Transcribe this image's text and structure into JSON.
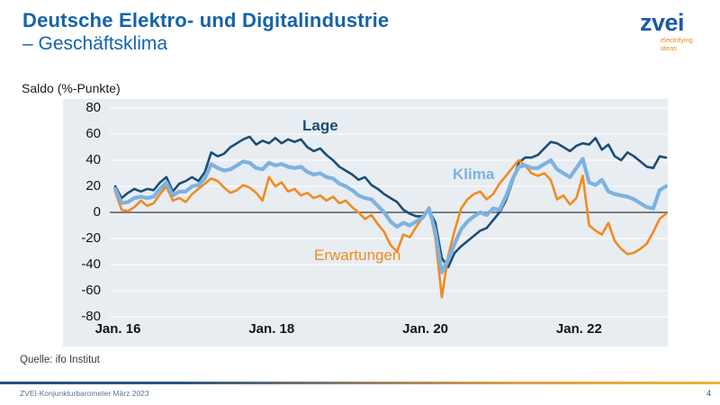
{
  "header": {
    "title_line1": "Deutsche Elektro- und Digitalindustrie",
    "title_line2": "– Geschäftsklima"
  },
  "logo": {
    "wordmark": "zvei",
    "tagline_line1": "electrifying",
    "tagline_line2": "ideas",
    "wordmark_color": "#1c5aa5",
    "tagline_color": "#ef8a17"
  },
  "chart": {
    "axis_title": "Saldo (%-Punkte)",
    "series_labels": {
      "lage": "Lage",
      "klima": "Klima",
      "erwartungen": "Erwartungen"
    }
  },
  "chart_data": {
    "type": "line",
    "title": "Deutsche Elektro- und Digitalindustrie – Geschäftsklima",
    "ylabel": "Saldo (%-Punkte)",
    "ylim": [
      -80,
      80
    ],
    "y_ticks": [
      80,
      60,
      40,
      20,
      0,
      -20,
      -40,
      -60,
      -80
    ],
    "x_tick_labels": [
      "Jan. 16",
      "Jan. 18",
      "Jan. 20",
      "Jan. 22"
    ],
    "x_tick_month_index": [
      0,
      24,
      48,
      72
    ],
    "x_start": "2016-01",
    "x_end": "2023-03",
    "x_unit": "month",
    "grid": true,
    "plot_bg": "#e8edf2",
    "zero_axis_color": "#57585a",
    "series": [
      {
        "name": "Lage",
        "color": "#1b4d75",
        "width": 2.6,
        "values": [
          20,
          11,
          15,
          18,
          16,
          18,
          17,
          23,
          27,
          16,
          22,
          24,
          27,
          24,
          31,
          46,
          43,
          45,
          50,
          53,
          56,
          58,
          52,
          55,
          53,
          57,
          53,
          56,
          54,
          56,
          50,
          47,
          49,
          44,
          40,
          35,
          32,
          29,
          25,
          27,
          21,
          18,
          14,
          11,
          8,
          2,
          -1,
          -3,
          -3,
          2,
          -8,
          -35,
          -42,
          -31,
          -26,
          -22,
          -18,
          -14,
          -12,
          -6,
          0,
          9,
          23,
          38,
          42,
          42,
          44,
          49,
          54,
          53,
          50,
          47,
          51,
          53,
          52,
          57,
          48,
          52,
          43,
          40,
          46,
          43,
          39,
          35,
          34,
          43,
          42
        ]
      },
      {
        "name": "Erwartungen",
        "color": "#f18b1f",
        "width": 2.6,
        "values": [
          16,
          2,
          1,
          4,
          9,
          5,
          7,
          14,
          20,
          9,
          11,
          8,
          14,
          18,
          22,
          26,
          24,
          19,
          15,
          17,
          21,
          19,
          15,
          9,
          27,
          20,
          23,
          16,
          18,
          13,
          15,
          11,
          13,
          9,
          12,
          7,
          9,
          4,
          0,
          -5,
          -2,
          -9,
          -15,
          -25,
          -30,
          -17,
          -19,
          -11,
          -4,
          4,
          -20,
          -65,
          -33,
          -14,
          3,
          10,
          14,
          16,
          10,
          14,
          22,
          28,
          34,
          40,
          36,
          30,
          28,
          30,
          25,
          10,
          13,
          6,
          11,
          28,
          -10,
          -14,
          -17,
          -8,
          -22,
          -28,
          -32,
          -31,
          -28,
          -24,
          -15,
          -5,
          -1
        ]
      },
      {
        "name": "Klima",
        "color": "#7db2e0",
        "width": 4.2,
        "values": [
          18,
          7,
          8,
          11,
          12,
          11,
          12,
          18,
          23,
          13,
          16,
          16,
          20,
          21,
          26,
          37,
          34,
          32,
          33,
          36,
          39,
          38,
          34,
          33,
          38,
          36,
          37,
          35,
          34,
          35,
          31,
          29,
          30,
          27,
          26,
          22,
          20,
          17,
          13,
          11,
          10,
          5,
          0,
          -7,
          -11,
          -8,
          -10,
          -7,
          -4,
          3,
          -15,
          -46,
          -36,
          -24,
          -13,
          -7,
          -3,
          0,
          -2,
          3,
          2,
          12,
          25,
          35,
          36,
          34,
          34,
          37,
          40,
          33,
          30,
          27,
          34,
          41,
          23,
          21,
          25,
          16,
          14,
          13,
          12,
          10,
          7,
          4,
          3,
          17,
          20
        ]
      }
    ]
  },
  "source": "Quelle: ifo Institut",
  "footer": {
    "left": "ZVEI-Konjunkturbarometer März 2023",
    "page": "4"
  }
}
